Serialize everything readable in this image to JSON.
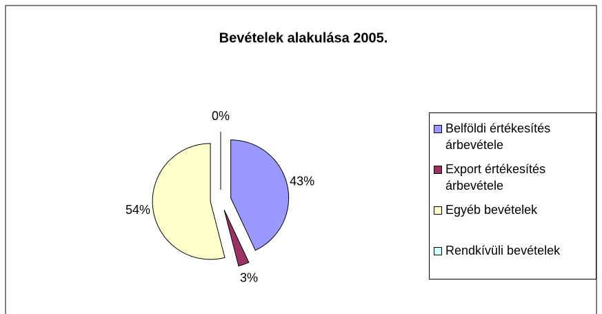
{
  "chart_data": {
    "type": "pie",
    "title": "Bevételek alakulása 2005.",
    "categories": [
      "Belföldi értékesítés árbevétele",
      "Export értékesítés árbevétele",
      "Egyéb bevételek",
      "Rendkívüli bevételek"
    ],
    "values": [
      43,
      3,
      54,
      0
    ],
    "value_labels": [
      "43%",
      "3%",
      "54%",
      "0%"
    ],
    "colors": [
      "#9999ff",
      "#993366",
      "#ffffcc",
      "#ccffff"
    ],
    "legend": "right"
  }
}
